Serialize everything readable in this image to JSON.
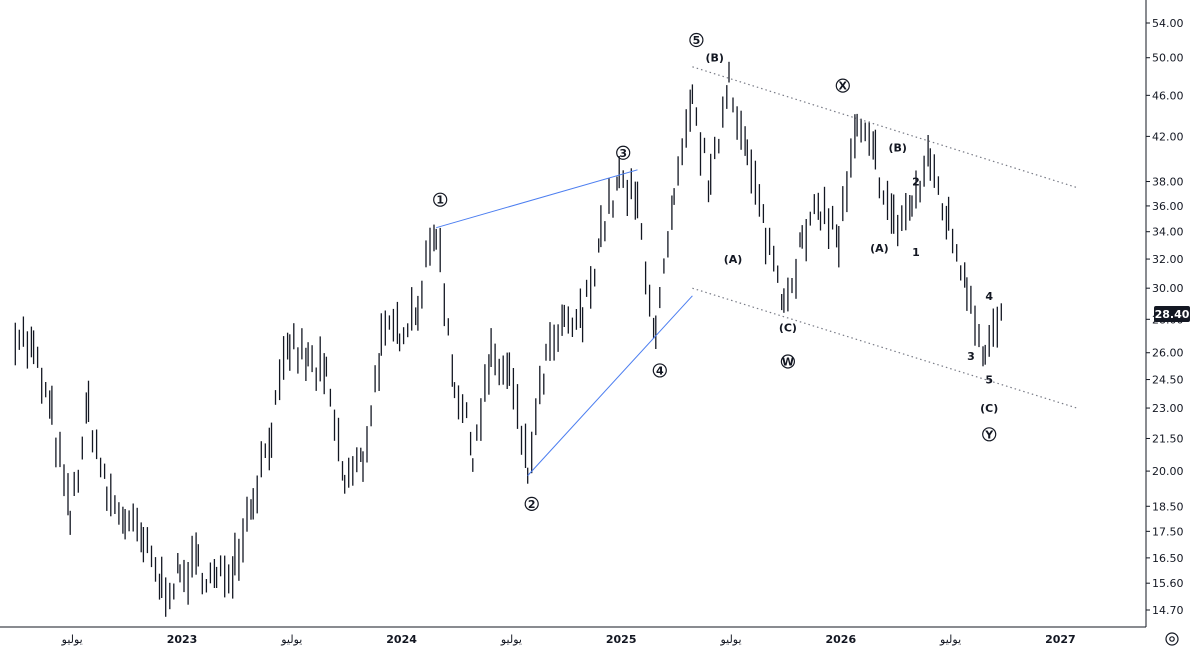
{
  "chart_data": {
    "type": "line",
    "title": "",
    "xlabel": "",
    "ylabel": "",
    "y_scale": "log",
    "ylim": [
      14.0,
      56.0
    ],
    "grid": false,
    "y_ticks": [
      "54.00",
      "50.00",
      "46.00",
      "42.00",
      "38.00",
      "36.00",
      "34.00",
      "32.00",
      "30.00",
      "28.00",
      "26.00",
      "24.50",
      "23.00",
      "21.50",
      "20.00",
      "18.50",
      "17.50",
      "16.50",
      "15.60",
      "14.70"
    ],
    "x_ticks": [
      "يوليو",
      "2023",
      "يوليو",
      "2024",
      "يوليو",
      "2025",
      "يوليو",
      "2026",
      "يوليو",
      "2027"
    ],
    "last_price": "28.40",
    "series": [
      {
        "x": [
          "2022-04",
          "2022-05",
          "2022-06",
          "2022-07",
          "2022-08",
          "2022-09",
          "2022-10",
          "2022-11",
          "2022-12",
          "2023-01",
          "2023-02",
          "2023-03",
          "2023-04",
          "2023-05",
          "2023-06",
          "2023-07",
          "2023-08",
          "2023-09",
          "2023-10",
          "2023-11",
          "2023-12",
          "2024-01",
          "2024-02",
          "2024-03",
          "2024-04",
          "2024-05",
          "2024-06",
          "2024-07",
          "2024-08",
          "2024-09",
          "2024-10",
          "2024-11",
          "2024-12",
          "2025-01",
          "2025-02",
          "2025-03",
          "2025-04",
          "2025-05",
          "2025-06",
          "2025-07",
          "2025-08",
          "2025-09",
          "2025-10",
          "2025-11",
          "2025-12",
          "2026-01",
          "2026-02",
          "2026-03",
          "2026-04",
          "2026-05",
          "2026-06",
          "2026-07",
          "2026-08",
          "2026-09",
          "2026-10"
        ],
        "values": [
          27.5,
          26.0,
          22.5,
          18.0,
          23.0,
          19.0,
          18.0,
          17.0,
          15.5,
          15.8,
          16.3,
          15.6,
          16.5,
          19.0,
          22.0,
          26.5,
          25.5,
          24.5,
          19.5,
          20.5,
          26.5,
          27.5,
          29.0,
          34.5,
          24.5,
          21.0,
          25.5,
          24.8,
          20.0,
          25.5,
          27.5,
          28.0,
          34.0,
          38.0,
          36.0,
          27.0,
          36.0,
          45.0,
          37.5,
          48.5,
          40.0,
          34.0,
          29.5,
          33.0,
          36.0,
          33.5,
          42.5,
          40.0,
          34.5,
          36.0,
          40.0,
          34.5,
          30.5,
          26.0,
          28.4
        ]
      }
    ],
    "trendlines": [
      {
        "name": "wave-1-3-line",
        "from": [
          "2024-03",
          34.3
        ],
        "to": [
          "2025-02",
          39.0
        ]
      },
      {
        "name": "wave-2-4-line",
        "from": [
          "2024-08",
          19.8
        ],
        "to": [
          "2025-05",
          29.5
        ]
      },
      {
        "name": "channel-upper",
        "from": [
          "2025-05",
          49.0
        ],
        "to": [
          "2027-02",
          37.5
        ]
      },
      {
        "name": "channel-lower",
        "from": [
          "2025-05",
          30.0
        ],
        "to": [
          "2027-02",
          23.0
        ]
      }
    ],
    "wave_labels": [
      {
        "text": "1",
        "circled": true,
        "x": "2024-03",
        "y": 36.5
      },
      {
        "text": "2",
        "circled": true,
        "x": "2024-08",
        "y": 18.6
      },
      {
        "text": "3",
        "circled": true,
        "x": "2025-01",
        "y": 40.5
      },
      {
        "text": "4",
        "circled": true,
        "x": "2025-03",
        "y": 25.0
      },
      {
        "text": "5",
        "circled": true,
        "x": "2025-05",
        "y": 52.0
      },
      {
        "text": "(B)",
        "circled": false,
        "x": "2025-06",
        "y": 50.0
      },
      {
        "text": "(A)",
        "circled": false,
        "x": "2025-07",
        "y": 32.0
      },
      {
        "text": "(C)",
        "circled": false,
        "x": "2025-10",
        "y": 27.5
      },
      {
        "text": "W",
        "circled": true,
        "x": "2025-10",
        "y": 25.5
      },
      {
        "text": "X",
        "circled": true,
        "x": "2026-01",
        "y": 47.0
      },
      {
        "text": "(A)",
        "circled": false,
        "x": "2026-03",
        "y": 32.8
      },
      {
        "text": "(B)",
        "circled": false,
        "x": "2026-04",
        "y": 41.0
      },
      {
        "text": "1",
        "circled": false,
        "x": "2026-05",
        "y": 32.5
      },
      {
        "text": "2",
        "circled": false,
        "x": "2026-05",
        "y": 38.0
      },
      {
        "text": "3",
        "circled": false,
        "x": "2026-08",
        "y": 25.8
      },
      {
        "text": "4",
        "circled": false,
        "x": "2026-09",
        "y": 29.5
      },
      {
        "text": "5",
        "circled": false,
        "x": "2026-09",
        "y": 24.5
      },
      {
        "text": "(C)",
        "circled": false,
        "x": "2026-09",
        "y": 23.0
      },
      {
        "text": "Y",
        "circled": true,
        "x": "2026-09",
        "y": 21.7
      }
    ]
  },
  "colors": {
    "bars": "#131722",
    "trendline_blue": "#4c7ef0",
    "channel_dotted": "#787b86",
    "axis_line": "#131722"
  },
  "ui": {
    "settings_icon": "gear-icon"
  }
}
